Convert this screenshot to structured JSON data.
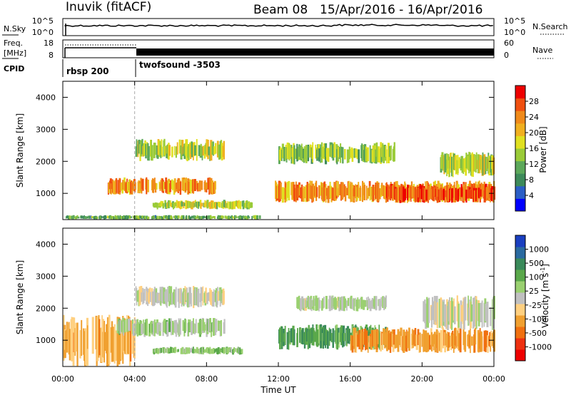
{
  "header": {
    "station": "Inuvik (fitACF)",
    "beam": "Beam 08",
    "date_range": "15/Apr/2016 - 16/Apr/2016"
  },
  "top_panels": {
    "nsky_label": "N.Sky",
    "nsearch_label": "N.Search",
    "nsky_ticks": [
      "10^5",
      "10^0"
    ],
    "nsearch_ticks": [
      "10^5",
      "10^0"
    ],
    "freq_label_line1": "Freq.",
    "freq_label_line2": "[MHz]",
    "freq_ticks": [
      "18",
      "8"
    ],
    "nave_label": "Nave",
    "nave_ticks": [
      "60",
      "0"
    ],
    "cpid_label": "CPID",
    "programs": [
      {
        "name": "rbsp 200",
        "start_hour": 0
      },
      {
        "name": "twofsound -3503",
        "start_hour": 4
      }
    ]
  },
  "x_axis": {
    "label": "Time UT",
    "ticks": [
      "00:00",
      "04:00",
      "08:00",
      "12:00",
      "16:00",
      "20:00",
      "00:00"
    ]
  },
  "power_panel": {
    "ylabel": "Slant Range [km]",
    "yticks": [
      "1000",
      "2000",
      "3000",
      "4000"
    ],
    "colorbar_label": "Power [dB]",
    "colorbar_ticks": [
      "28",
      "24",
      "20",
      "16",
      "12",
      "8",
      "4"
    ],
    "colors": [
      "#0000ff",
      "#2b5ec6",
      "#3d8a5a",
      "#5ca85a",
      "#9acb38",
      "#e0e020",
      "#f0b020",
      "#f08a1a",
      "#f05010",
      "#ee0000"
    ]
  },
  "velocity_panel": {
    "ylabel": "Slant Range [km]",
    "yticks": [
      "1000",
      "2000",
      "3000",
      "4000"
    ],
    "colorbar_label": "Velocity [m s^-1]",
    "colorbar_ticks": [
      "1000",
      "500",
      "100",
      "25",
      "-25",
      "-100",
      "-500",
      "-1000"
    ],
    "colors": [
      "#1a3fc0",
      "#2a6aa0",
      "#3a8a5a",
      "#5aa84a",
      "#9ad070",
      "#c0c0c0",
      "#ffd080",
      "#f0a030",
      "#f07010",
      "#ee3010",
      "#ee0000"
    ]
  },
  "chart_data": [
    {
      "type": "heatmap",
      "title": "Power",
      "x": {
        "range_hours": [
          0,
          24
        ],
        "ticks": [
          "00:00",
          "04:00",
          "08:00",
          "12:00",
          "16:00",
          "20:00",
          "00:00"
        ],
        "label": "Time UT"
      },
      "ylabel": "Slant Range [km]",
      "ylim": [
        180,
        4500
      ],
      "colorbar": {
        "label": "Power [dB]",
        "ticks": [
          4,
          8,
          12,
          16,
          20,
          24,
          28
        ]
      },
      "regions": [
        {
          "t": [
            0,
            11
          ],
          "r": [
            180,
            320
          ],
          "value": 12
        },
        {
          "t": [
            2.5,
            8.5
          ],
          "r": [
            950,
            1500
          ],
          "value": 22
        },
        {
          "t": [
            4,
            9
          ],
          "r": [
            2000,
            2700
          ],
          "value": 16
        },
        {
          "t": [
            5,
            10.5
          ],
          "r": [
            500,
            800
          ],
          "value": 16
        },
        {
          "t": [
            11.8,
            24
          ],
          "r": [
            700,
            1400
          ],
          "value": 22
        },
        {
          "t": [
            18,
            24
          ],
          "r": [
            700,
            1300
          ],
          "value": 26
        },
        {
          "t": [
            12,
            18.5
          ],
          "r": [
            1900,
            2600
          ],
          "value": 14
        },
        {
          "t": [
            21,
            24
          ],
          "r": [
            1500,
            2300
          ],
          "value": 16
        }
      ]
    },
    {
      "type": "heatmap",
      "title": "Velocity",
      "x": {
        "range_hours": [
          0,
          24
        ],
        "ticks": [
          "00:00",
          "04:00",
          "08:00",
          "12:00",
          "16:00",
          "20:00",
          "00:00"
        ],
        "label": "Time UT"
      },
      "ylabel": "Slant Range [km]",
      "ylim": [
        180,
        4500
      ],
      "colorbar": {
        "label": "Velocity [m s^-1]",
        "ticks": [
          -1000,
          -500,
          -100,
          -25,
          25,
          100,
          500,
          1000
        ]
      },
      "regions": [
        {
          "t": [
            0,
            4
          ],
          "r": [
            180,
            1800
          ],
          "value": -300
        },
        {
          "t": [
            3,
            9
          ],
          "r": [
            1100,
            1700
          ],
          "value": 150
        },
        {
          "t": [
            4,
            9
          ],
          "r": [
            2000,
            2700
          ],
          "value": 0
        },
        {
          "t": [
            5,
            10
          ],
          "r": [
            550,
            800
          ],
          "value": 200
        },
        {
          "t": [
            12,
            18
          ],
          "r": [
            700,
            1500
          ],
          "value": 400
        },
        {
          "t": [
            16,
            24
          ],
          "r": [
            600,
            1400
          ],
          "value": -400
        },
        {
          "t": [
            13,
            18
          ],
          "r": [
            1900,
            2400
          ],
          "value": 60
        },
        {
          "t": [
            20,
            24
          ],
          "r": [
            1300,
            2400
          ],
          "value": 0
        }
      ]
    }
  ]
}
